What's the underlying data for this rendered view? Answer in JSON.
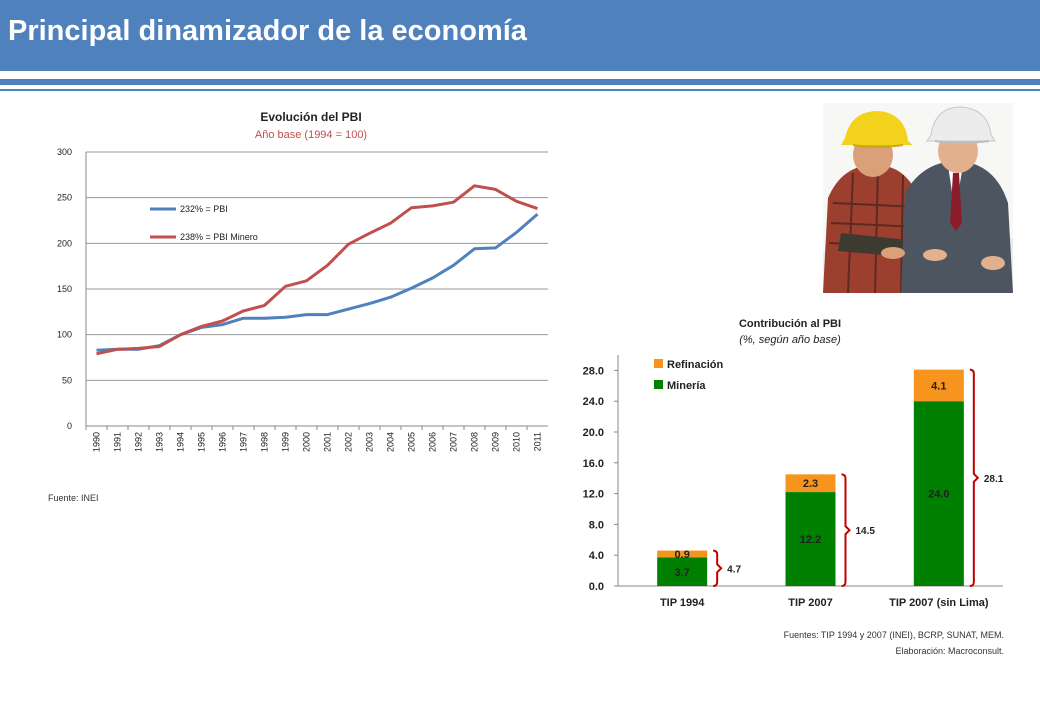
{
  "slide": {
    "title": "Principal dinamizador de la economía",
    "accent_color": "#4f81bd"
  },
  "photo": {
    "icon": "engineers-with-hard-hats-photo"
  },
  "chart_data": [
    {
      "type": "line",
      "title": "Evolución del PBI",
      "subtitle": "Año base (1994 = 100)",
      "x": [
        "1990",
        "1991",
        "1992",
        "1993",
        "1994",
        "1995",
        "1996",
        "1997",
        "1998",
        "1999",
        "2000",
        "2001",
        "2002",
        "2003",
        "2004",
        "2005",
        "2006",
        "2007",
        "2008",
        "2009",
        "2010",
        "2011"
      ],
      "ylim": [
        0,
        300
      ],
      "yticks": [
        0,
        50,
        100,
        150,
        200,
        250,
        300
      ],
      "grid": true,
      "legend_position": "upper-left",
      "series": [
        {
          "name": "232% = PBI",
          "color": "#4f81bd",
          "values": [
            83,
            84,
            84,
            88,
            100,
            108,
            111,
            118,
            118,
            119,
            122,
            122,
            128,
            134,
            141,
            151,
            162,
            176,
            194,
            195,
            212,
            232
          ]
        },
        {
          "name": "238% = PBI Minero",
          "color": "#c0504d",
          "values": [
            79,
            84,
            85,
            87,
            100,
            109,
            115,
            126,
            132,
            153,
            159,
            176,
            199,
            211,
            222,
            239,
            241,
            245,
            263,
            259,
            246,
            238
          ]
        }
      ],
      "source": "Fuente: INEI"
    },
    {
      "type": "bar",
      "stacked": true,
      "title": "Contribución al PBI",
      "subtitle": "(%, según año base)",
      "categories": [
        "TIP 1994",
        "TIP 2007",
        "TIP 2007 (sin Lima)"
      ],
      "ylim": [
        0,
        30
      ],
      "yticks": [
        "0.0",
        "4.0",
        "8.0",
        "12.0",
        "16.0",
        "20.0",
        "24.0",
        "28.0"
      ],
      "legend_position": "top-left",
      "series": [
        {
          "name": "Minería",
          "color": "#008000",
          "values": [
            3.7,
            12.2,
            24.0
          ],
          "labels": [
            "3.7",
            "12.2",
            "24.0"
          ]
        },
        {
          "name": "Refinación",
          "color": "#f7941d",
          "values": [
            0.9,
            2.3,
            4.1
          ],
          "labels": [
            "0.9",
            "2.3",
            "4.1"
          ]
        }
      ],
      "totals": [
        "4.7",
        "14.5",
        "28.1"
      ],
      "bracket_color": "#c00000",
      "sources": [
        "Fuentes: TIP 1994 y 2007 (INEI), BCRP, SUNAT, MEM.",
        "Elaboración: Macroconsult."
      ]
    }
  ]
}
